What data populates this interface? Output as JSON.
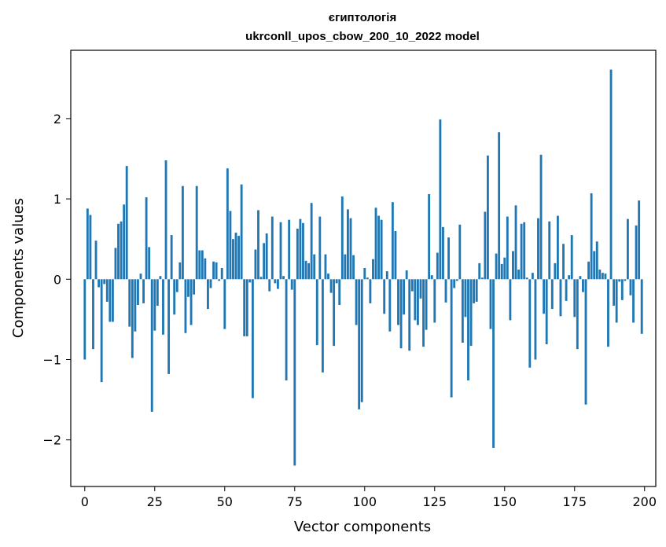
{
  "chart_data": {
    "type": "bar",
    "title": "єгиптологія",
    "subtitle": "ukrconll_upos_cbow_200_10_2022 model",
    "xlabel": "Vector components",
    "ylabel": "Components values",
    "xlim": [
      -5,
      204
    ],
    "ylim": [
      -2.58,
      2.85
    ],
    "xticks": [
      0,
      25,
      50,
      75,
      100,
      125,
      150,
      175,
      200
    ],
    "yticks": [
      -2,
      -1,
      0,
      1,
      2
    ],
    "ytick_labels": [
      "−2",
      "−1",
      "0",
      "1",
      "2"
    ],
    "grid": false,
    "bar_color": "#1f77b4",
    "x": [
      0,
      1,
      2,
      3,
      4,
      5,
      6,
      7,
      8,
      9,
      10,
      11,
      12,
      13,
      14,
      15,
      16,
      17,
      18,
      19,
      20,
      21,
      22,
      23,
      24,
      25,
      26,
      27,
      28,
      29,
      30,
      31,
      32,
      33,
      34,
      35,
      36,
      37,
      38,
      39,
      40,
      41,
      42,
      43,
      44,
      45,
      46,
      47,
      48,
      49,
      50,
      51,
      52,
      53,
      54,
      55,
      56,
      57,
      58,
      59,
      60,
      61,
      62,
      63,
      64,
      65,
      66,
      67,
      68,
      69,
      70,
      71,
      72,
      73,
      74,
      75,
      76,
      77,
      78,
      79,
      80,
      81,
      82,
      83,
      84,
      85,
      86,
      87,
      88,
      89,
      90,
      91,
      92,
      93,
      94,
      95,
      96,
      97,
      98,
      99,
      100,
      101,
      102,
      103,
      104,
      105,
      106,
      107,
      108,
      109,
      110,
      111,
      112,
      113,
      114,
      115,
      116,
      117,
      118,
      119,
      120,
      121,
      122,
      123,
      124,
      125,
      126,
      127,
      128,
      129,
      130,
      131,
      132,
      133,
      134,
      135,
      136,
      137,
      138,
      139,
      140,
      141,
      142,
      143,
      144,
      145,
      146,
      147,
      148,
      149,
      150,
      151,
      152,
      153,
      154,
      155,
      156,
      157,
      158,
      159,
      160,
      161,
      162,
      163,
      164,
      165,
      166,
      167,
      168,
      169,
      170,
      171,
      172,
      173,
      174,
      175,
      176,
      177,
      178,
      179,
      180,
      181,
      182,
      183,
      184,
      185,
      186,
      187,
      188,
      189,
      190,
      191,
      192,
      193,
      194,
      195,
      196,
      197,
      198,
      199
    ],
    "values": [
      -1.0,
      0.88,
      0.8,
      -0.87,
      0.48,
      -0.1,
      -1.28,
      -0.06,
      -0.28,
      -0.53,
      -0.53,
      0.39,
      0.69,
      0.72,
      0.93,
      1.41,
      -0.59,
      -0.98,
      -0.65,
      -0.32,
      0.07,
      -0.3,
      1.02,
      0.4,
      -1.65,
      -0.64,
      -0.33,
      0.04,
      -0.69,
      1.48,
      -1.18,
      0.55,
      -0.44,
      -0.16,
      0.21,
      1.16,
      -0.67,
      -0.22,
      -0.57,
      -0.19,
      1.16,
      0.36,
      0.36,
      0.26,
      -0.37,
      -0.11,
      0.22,
      0.21,
      -0.02,
      0.14,
      -0.62,
      1.38,
      0.85,
      0.5,
      0.58,
      0.54,
      1.18,
      -0.71,
      -0.71,
      -0.04,
      -1.48,
      0.37,
      0.86,
      0.03,
      0.45,
      0.57,
      -0.15,
      0.78,
      -0.05,
      -0.12,
      0.71,
      0.04,
      -1.26,
      0.74,
      -0.13,
      -2.32,
      0.63,
      0.75,
      0.7,
      0.23,
      0.2,
      0.95,
      0.31,
      -0.82,
      0.78,
      -1.16,
      0.31,
      0.07,
      -0.17,
      -0.83,
      -0.05,
      -0.32,
      1.03,
      0.31,
      0.87,
      0.76,
      0.3,
      -0.57,
      -1.62,
      -1.53,
      0.14,
      0.02,
      -0.3,
      0.25,
      0.89,
      0.79,
      0.74,
      -0.43,
      0.1,
      -0.65,
      0.96,
      0.6,
      -0.57,
      -0.86,
      -0.44,
      0.11,
      -0.89,
      -0.15,
      -0.51,
      -0.57,
      -0.24,
      -0.84,
      -0.63,
      1.06,
      0.05,
      -0.54,
      0.33,
      1.99,
      0.65,
      -0.29,
      0.52,
      -1.47,
      -0.11,
      -0.02,
      0.68,
      -0.79,
      -0.47,
      -1.26,
      -0.83,
      -0.3,
      -0.28,
      0.2,
      0.02,
      0.84,
      1.54,
      -0.62,
      -2.1,
      0.32,
      1.83,
      0.19,
      0.27,
      0.78,
      -0.51,
      0.35,
      0.92,
      0.12,
      0.69,
      0.71,
      0.02,
      -1.1,
      0.08,
      -1.0,
      0.76,
      1.55,
      -0.43,
      -0.81,
      0.72,
      -0.37,
      0.2,
      0.79,
      -0.46,
      0.44,
      -0.27,
      0.05,
      0.55,
      -0.47,
      -0.87,
      0.04,
      -0.16,
      -1.56,
      0.22,
      1.07,
      0.35,
      0.47,
      0.12,
      0.08,
      0.07,
      -0.84,
      2.61,
      -0.33,
      -0.54,
      -0.03,
      -0.26,
      -0.02,
      0.75,
      -0.2,
      -0.54,
      0.67,
      0.98,
      -0.68
    ]
  }
}
